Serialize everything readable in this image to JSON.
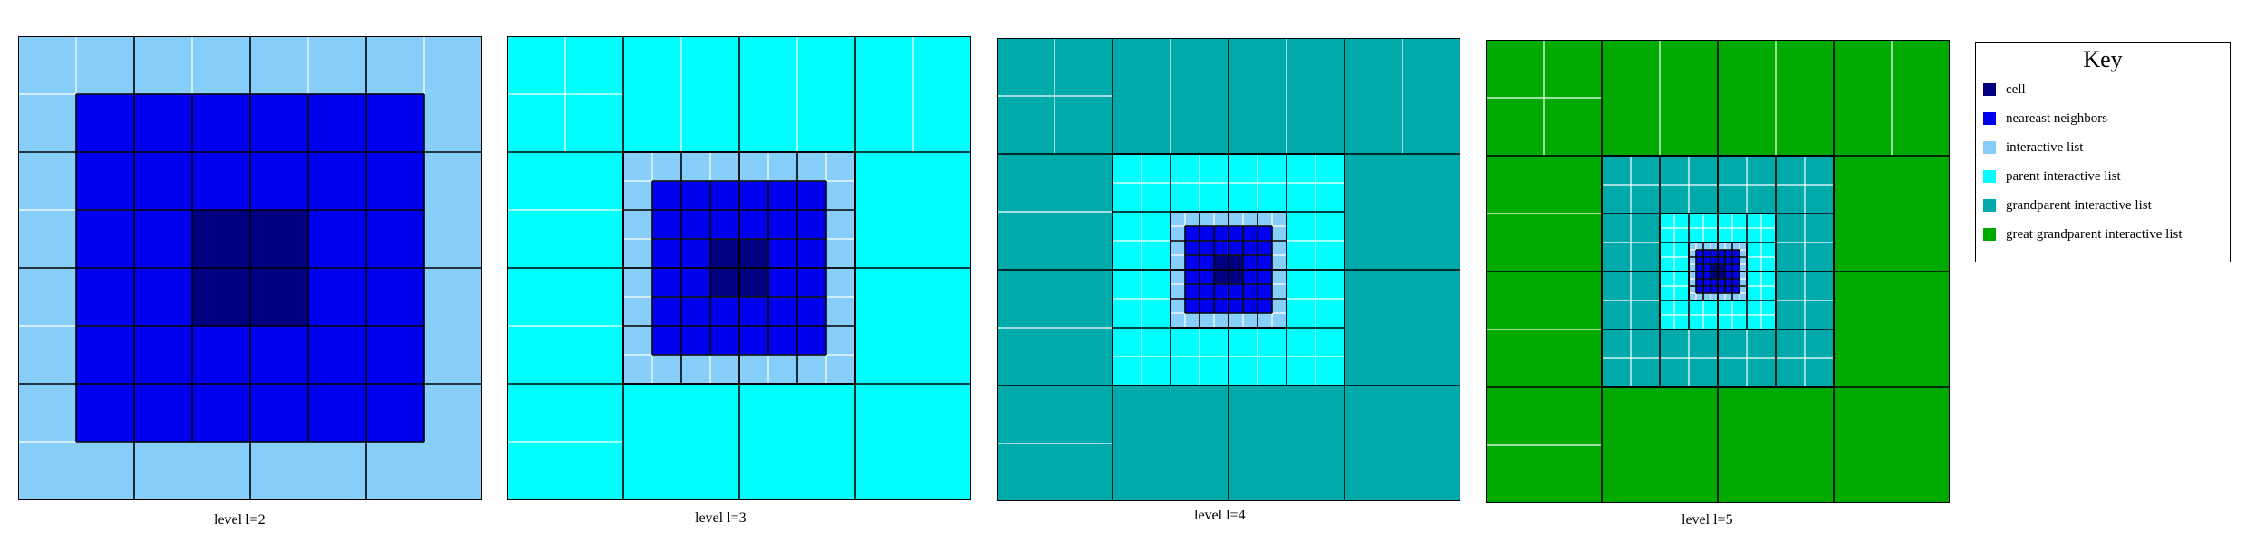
{
  "colors": {
    "cell": "#000080",
    "nearest_neighbors": "#0000ee",
    "interactive": "#87cefa",
    "parent_interactive": "#00ffff",
    "grandparent_interactive": "#00aaaa",
    "great_grandparent_interactive": "#00aa00",
    "grid_major": "#000000",
    "grid_minor": "#ffffff"
  },
  "panels": [
    {
      "caption": "level l=2",
      "level": 2
    },
    {
      "caption": "level l=3",
      "level": 3
    },
    {
      "caption": "level l=4",
      "level": 4
    },
    {
      "caption": "level l=5",
      "level": 5
    }
  ],
  "legend": {
    "title": "Key",
    "items": [
      {
        "label": "cell",
        "color": "#000080"
      },
      {
        "label": "neareast neighbors",
        "color": "#0000ee"
      },
      {
        "label": "interactive list",
        "color": "#87cefa"
      },
      {
        "label": "parent interactive list",
        "color": "#00ffff"
      },
      {
        "label": "grandparent interactive list",
        "color": "#00aaaa"
      },
      {
        "label": "great grandparent interactive list",
        "color": "#00aa00"
      }
    ]
  }
}
